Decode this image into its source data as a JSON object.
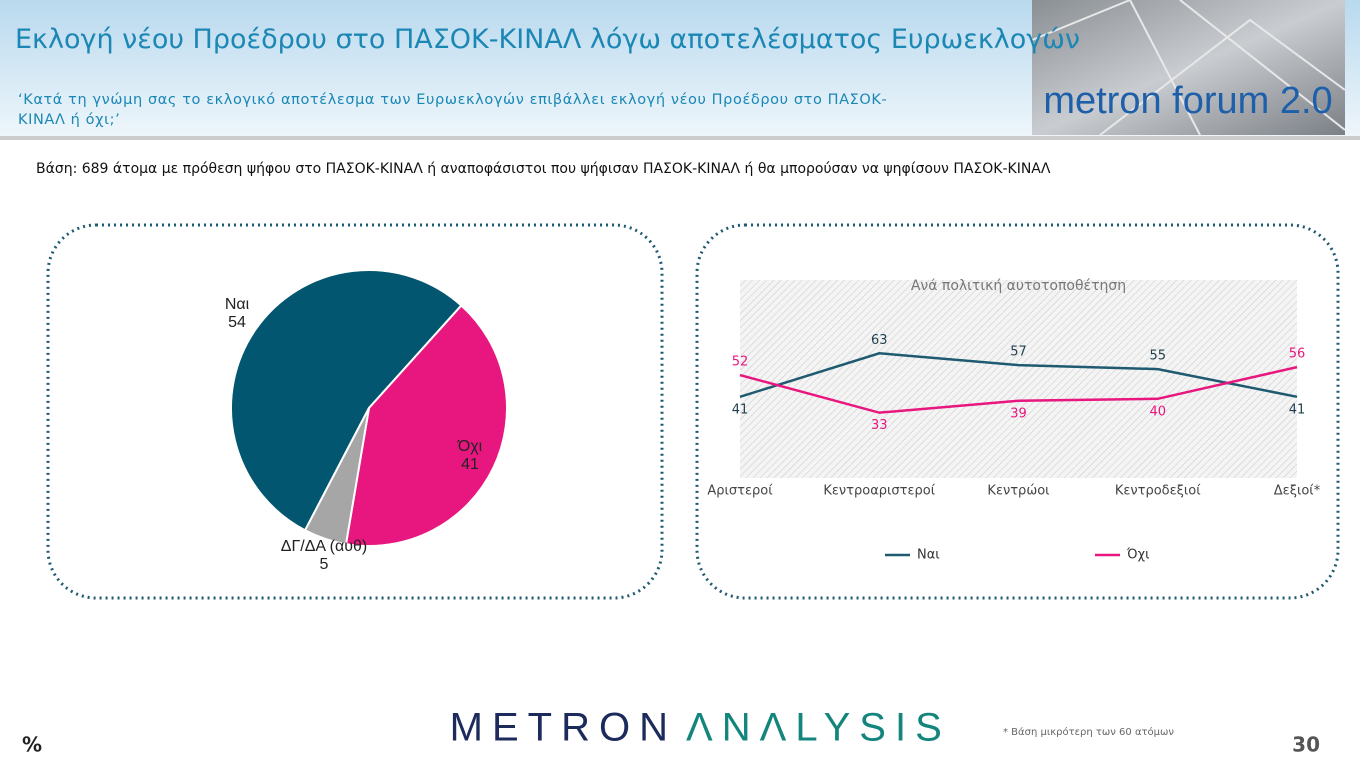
{
  "header": {
    "title": "Εκλογή νέου Προέδρου στο ΠΑΣΟΚ-ΚΙΝΑΛ λόγω αποτελέσματος Ευρωεκλογών",
    "question": "‘Κατά τη γνώμη σας το εκλογικό αποτέλεσμα των Ευρωεκλογών επιβάλλει εκλογή νέου Προέδρου στο ΠΑΣΟΚ-ΚΙΝΑΛ ή όχι;’",
    "logo": "metron forum 2.0"
  },
  "base": "Βάση: 689 άτομα με πρόθεση ψήφου στο ΠΑΣΟΚ-ΚΙΝΑΛ ή αναποφάσιστοι που ψήφισαν ΠΑΣΟΚ-ΚΙΝΑΛ ή θα μπορούσαν να ψηφίσουν ΠΑΣΟΚ-ΚΙΝΑΛ",
  "chart_data": [
    {
      "type": "pie",
      "categories": [
        "Ναι",
        "Όχι",
        "ΔΓ/ΔΑ (αυθ)"
      ],
      "values": [
        54,
        41,
        5
      ],
      "colors": [
        "#03566f",
        "#e8177f",
        "#a6a6a6"
      ]
    },
    {
      "type": "line",
      "title": "Ανά πολιτική αυτοτοποθέτηση",
      "categories": [
        "Αριστεροί",
        "Κεντροαριστεροί",
        "Κεντρώοι",
        "Κεντροδεξιοί",
        "Δεξιοί*"
      ],
      "ylim": [
        0,
        100
      ],
      "series": [
        {
          "name": "Ναι",
          "color": "#1f5a70",
          "values": [
            41,
            63,
            57,
            55,
            41
          ]
        },
        {
          "name": "Όχι",
          "color": "#e8177f",
          "values": [
            52,
            33,
            39,
            40,
            56
          ]
        }
      ]
    }
  ],
  "footer": {
    "brand_left": "METRON",
    "brand_right": "ΛNΛLYSIS",
    "note": "*  Βάση μικρότερη των 60 ατόμων",
    "unit": "%",
    "page": "30"
  }
}
